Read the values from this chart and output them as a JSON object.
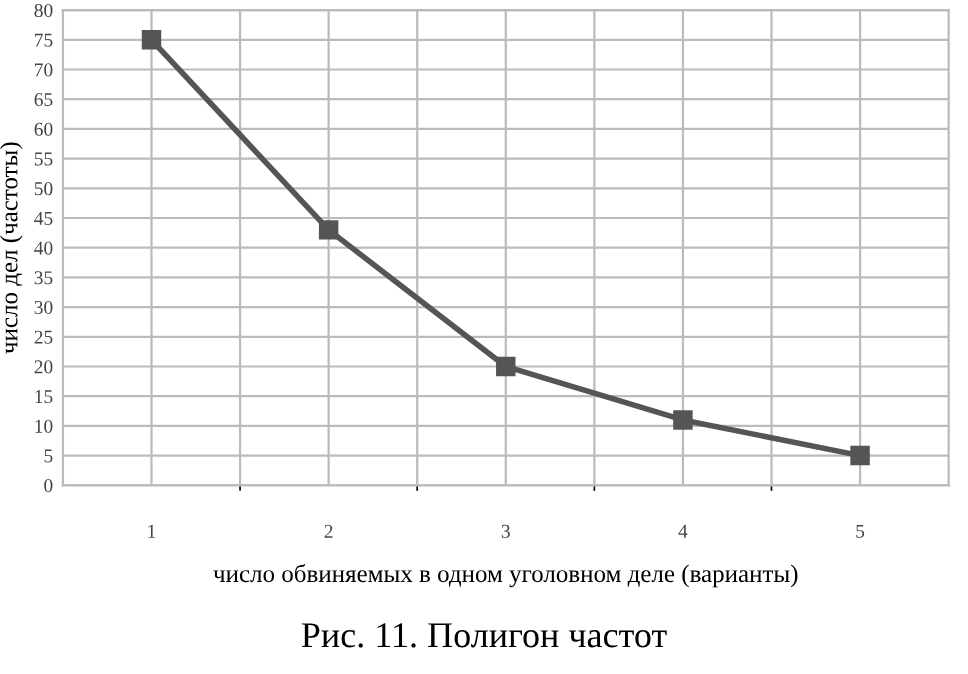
{
  "chart_data": {
    "type": "line",
    "title": "Рис. 11. Полигон частот",
    "xlabel": "число обвиняемых в одном уголовном деле (варианты)",
    "ylabel": "число дел (частоты)",
    "categories": [
      "1",
      "2",
      "3",
      "4",
      "5"
    ],
    "series": [
      {
        "color": "#555555",
        "values": [
          75,
          43,
          20,
          11,
          5
        ]
      }
    ],
    "ylim": [
      0,
      80
    ],
    "yticks": [
      0,
      5,
      10,
      15,
      20,
      25,
      30,
      35,
      40,
      45,
      50,
      55,
      60,
      65,
      70,
      75,
      80
    ],
    "grid": true,
    "marker": "square",
    "line_style": "solid"
  }
}
